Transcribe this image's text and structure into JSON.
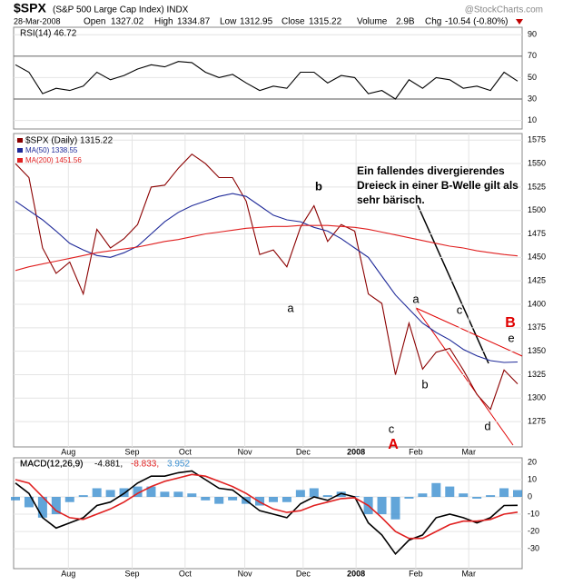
{
  "header": {
    "symbol": "$SPX",
    "name": "(S&P 500 Large Cap Index) INDX",
    "source": "@StockCharts.com",
    "date": "28-Mar-2008",
    "open_label": "Open",
    "open": 1327.02,
    "high_label": "High",
    "high": 1334.87,
    "low_label": "Low",
    "low": 1312.95,
    "close_label": "Close",
    "close": 1315.22,
    "volume_label": "Volume",
    "volume": "2.9B",
    "chg_label": "Chg",
    "chg": "-10.54 (-0.80%)"
  },
  "chart_data": [
    {
      "type": "line",
      "panel": "rsi",
      "label": "RSI(14) 46.72",
      "ylim": [
        2,
        97
      ],
      "yticks": [
        10,
        30,
        50,
        70,
        90
      ],
      "xlim": [
        0,
        37
      ],
      "series": [
        {
          "name": "RSI(14)",
          "color": "#000000",
          "values": [
            62,
            55,
            35,
            40,
            38,
            42,
            55,
            48,
            52,
            58,
            62,
            60,
            65,
            64,
            55,
            50,
            53,
            45,
            38,
            42,
            40,
            55,
            55,
            45,
            52,
            50,
            35,
            38,
            30,
            48,
            40,
            50,
            48,
            40,
            42,
            38,
            55,
            46.72
          ]
        }
      ]
    },
    {
      "type": "line",
      "panel": "price",
      "ylim": [
        1248,
        1582
      ],
      "xlim": [
        0,
        37
      ],
      "yticks": [
        1275,
        1300,
        1325,
        1350,
        1375,
        1400,
        1425,
        1450,
        1475,
        1500,
        1525,
        1550,
        1575
      ],
      "xticks": [
        {
          "value": 3.9,
          "label": "Aug"
        },
        {
          "value": 8.6,
          "label": "Sep"
        },
        {
          "value": 12.5,
          "label": "Oct"
        },
        {
          "value": 16.9,
          "label": "Nov"
        },
        {
          "value": 21.2,
          "label": "Dec"
        },
        {
          "value": 25.1,
          "label": "2008"
        },
        {
          "value": 29.5,
          "label": "Feb"
        },
        {
          "value": 33.4,
          "label": "Mar"
        }
      ],
      "series": [
        {
          "name": "$SPX (Daily) 1315.22",
          "color": "#8b0000",
          "values": [
            1550,
            1535,
            1460,
            1433,
            1445,
            1411,
            1480,
            1460,
            1470,
            1485,
            1525,
            1527,
            1545,
            1560,
            1550,
            1535,
            1535,
            1510,
            1453,
            1458,
            1440,
            1482,
            1505,
            1467,
            1485,
            1478,
            1411,
            1401,
            1325,
            1380,
            1331,
            1349,
            1353,
            1330,
            1304,
            1288,
            1330,
            1315.22
          ]
        },
        {
          "name": "MA(50) 1338.55",
          "color": "#1f2a99",
          "values": [
            1510,
            1500,
            1490,
            1478,
            1465,
            1458,
            1452,
            1450,
            1455,
            1462,
            1475,
            1488,
            1498,
            1505,
            1510,
            1515,
            1518,
            1515,
            1505,
            1495,
            1490,
            1488,
            1482,
            1478,
            1470,
            1460,
            1450,
            1430,
            1410,
            1395,
            1380,
            1370,
            1362,
            1352,
            1345,
            1340,
            1338,
            1338.55
          ]
        },
        {
          "name": "MA(200) 1451.56",
          "color": "#e02020",
          "values": [
            1436,
            1440,
            1443,
            1446,
            1449,
            1452,
            1455,
            1457,
            1459,
            1461,
            1464,
            1467,
            1469,
            1472,
            1475,
            1477,
            1479,
            1481,
            1482,
            1483,
            1483,
            1484,
            1484,
            1484,
            1483,
            1482,
            1480,
            1477,
            1474,
            1471,
            1468,
            1465,
            1462,
            1460,
            1457,
            1455,
            1453,
            1451.56
          ]
        }
      ],
      "annotations": [
        {
          "text": "a"
        },
        {
          "text": "b"
        },
        {
          "text": "c"
        },
        {
          "text": "A",
          "color": "#e00000"
        },
        {
          "text": "a"
        },
        {
          "text": "b"
        },
        {
          "text": "c"
        },
        {
          "text": "d"
        },
        {
          "text": "e"
        },
        {
          "text": "B",
          "color": "#e00000"
        }
      ],
      "comment": [
        "Ein fallendes divergierendes",
        "Dreieck in einer B-Welle gilt als",
        "sehr bärisch."
      ]
    },
    {
      "type": "macd",
      "panel": "macd",
      "label": "MACD(12,26,9)",
      "ylim": [
        -41.5,
        22.6
      ],
      "yticks": [
        -30,
        -20,
        -10,
        0,
        10,
        20
      ],
      "xlim": [
        0,
        37
      ],
      "series": [
        {
          "name": "-4.881,",
          "color": "#000000",
          "values": [
            8,
            2,
            -12,
            -18,
            -15,
            -12,
            -5,
            -3,
            2,
            8,
            12,
            12,
            14,
            15,
            10,
            5,
            4,
            -2,
            -8,
            -10,
            -12,
            -4,
            0,
            -2,
            2,
            0,
            -15,
            -22,
            -33,
            -25,
            -22,
            -12,
            -10,
            -12,
            -15,
            -12,
            -5,
            -4.881
          ]
        },
        {
          "name": "-8.833,",
          "color": "#e02020",
          "values": [
            10,
            8,
            0,
            -8,
            -12,
            -13,
            -10,
            -7,
            -3,
            2,
            6,
            9,
            11,
            13,
            12,
            9,
            6,
            2,
            -3,
            -7,
            -9,
            -8,
            -5,
            -3,
            -1,
            -0.5,
            -5,
            -12,
            -20,
            -24,
            -24,
            -20,
            -16,
            -14,
            -14,
            -13,
            -10,
            -8.833
          ]
        },
        {
          "name": "3.952",
          "color": "#3b8fd0",
          "kind": "histogram",
          "values": [
            -2,
            -6,
            -12,
            -10,
            -3,
            1,
            5,
            4,
            5,
            6,
            6,
            3,
            3,
            2,
            -2,
            -4,
            -2,
            -4,
            -5,
            -3,
            -3,
            4,
            5,
            1,
            3,
            0.5,
            -10,
            -10,
            -13,
            -1,
            2,
            8,
            6,
            2,
            -1,
            1,
            5,
            3.952
          ]
        }
      ]
    }
  ]
}
